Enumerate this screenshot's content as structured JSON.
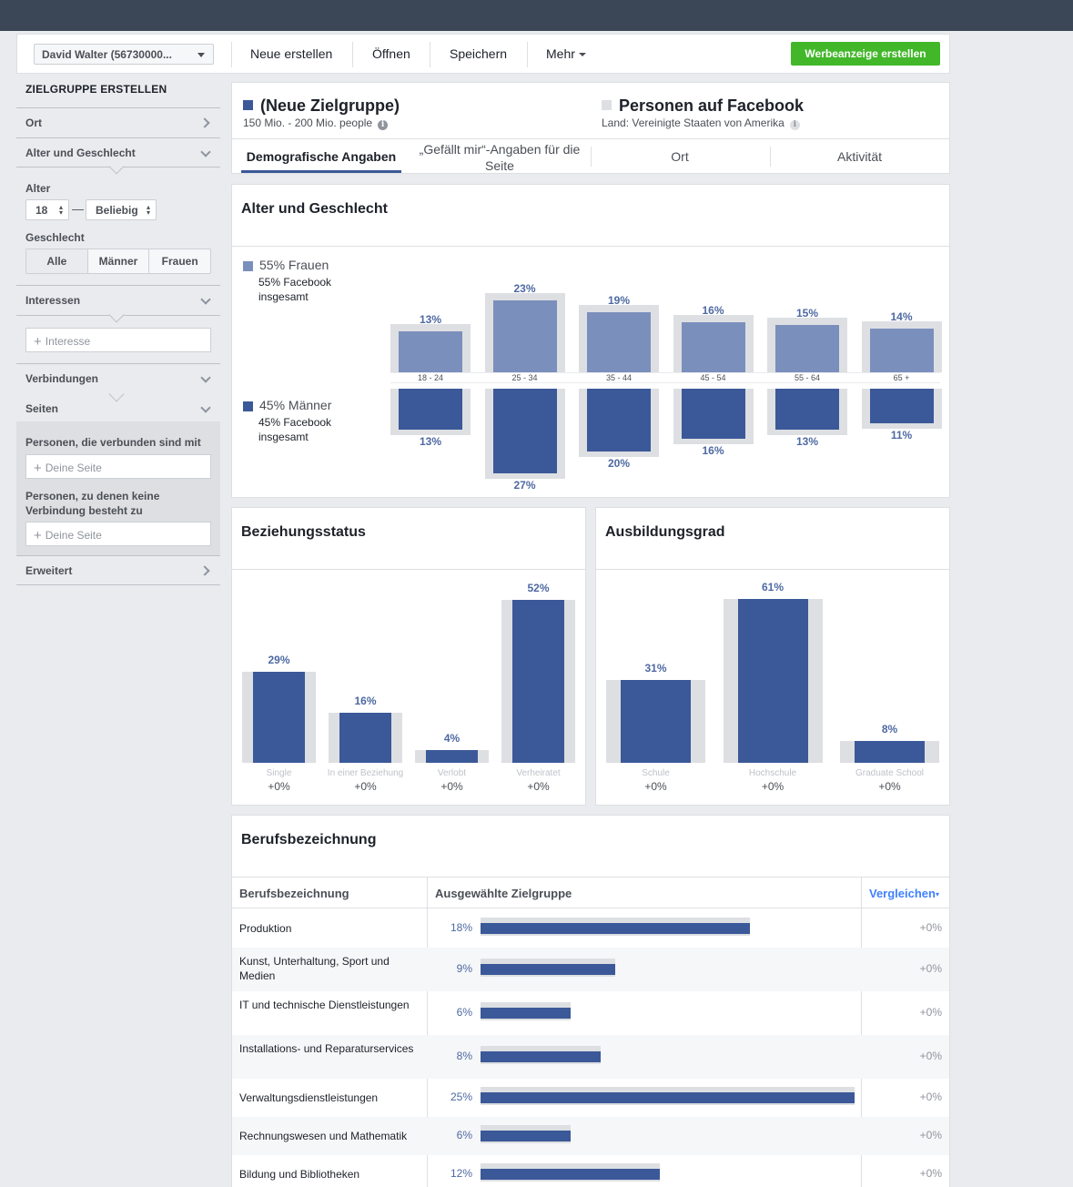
{
  "toolbar": {
    "account": "David Walter (56730000...",
    "new": "Neue erstellen",
    "open": "Öffnen",
    "save": "Speichern",
    "more": "Mehr",
    "create_ad": "Werbeanzeige erstellen"
  },
  "sidebar": {
    "title": "ZIELGRUPPE ERSTELLEN",
    "location": "Ort",
    "age_gender": "Alter und Geschlecht",
    "age_label": "Alter",
    "age_min": "18",
    "age_dash": "—",
    "age_max": "Beliebig",
    "gender_label": "Geschlecht",
    "gender_all": "Alle",
    "gender_men": "Männer",
    "gender_women": "Frauen",
    "interests": "Interessen",
    "interest_placeholder": "Interesse",
    "connections": "Verbindungen",
    "pages": "Seiten",
    "connected_label": "Personen, die verbunden sind mit",
    "not_connected_label": "Personen, zu denen keine Verbindung besteht zu",
    "page_placeholder": "Deine Seite",
    "advanced": "Erweitert",
    "plus_symbol": "+"
  },
  "audience": {
    "title": "(Neue Zielgruppe)",
    "size": "150 Mio. - 200 Mio. people",
    "compare_title": "Personen auf Facebook",
    "country": "Land: Vereinigte Staaten von Amerika",
    "accent": "#3b5998"
  },
  "tabs": [
    {
      "label": "Demografische Angaben"
    },
    {
      "label": "„Gefällt mir“-Angaben für die Seite"
    },
    {
      "label": "Ort"
    },
    {
      "label": "Aktivität"
    }
  ],
  "age_gender": {
    "title": "Alter und Geschlecht",
    "women_legend": "55% Frauen",
    "women_sub": "55% Facebook insgesamt",
    "men_legend": "45% Männer",
    "men_sub": "45% Facebook insgesamt"
  },
  "relationship": {
    "title": "Beziehungsstatus"
  },
  "education": {
    "title": "Ausbildungsgrad"
  },
  "jobs": {
    "title": "Berufsbezeichnung",
    "col1": "Berufsbezeichnung",
    "col2": "Ausgewählte Zielgruppe",
    "col3": "Vergleichen",
    "rows": [
      {
        "label": "Produktion",
        "pct": "18%",
        "delta": "+0%",
        "value": 18
      },
      {
        "label": "Kunst, Unterhaltung, Sport und Medien",
        "pct": "9%",
        "delta": "+0%",
        "value": 9
      },
      {
        "label": "IT und technische Dienstleistungen",
        "pct": "6%",
        "delta": "+0%",
        "value": 6
      },
      {
        "label": "Installations- und Reparaturservices",
        "pct": "8%",
        "delta": "+0%",
        "value": 8
      },
      {
        "label": "Verwaltungsdienstleistungen",
        "pct": "25%",
        "delta": "+0%",
        "value": 25
      },
      {
        "label": "Rechnungswesen und Mathematik",
        "pct": "6%",
        "delta": "+0%",
        "value": 6
      },
      {
        "label": "Bildung und Bibliotheken",
        "pct": "12%",
        "delta": "+0%",
        "value": 12
      }
    ]
  },
  "chart_data": [
    {
      "type": "bar",
      "title": "Alter und Geschlecht",
      "categories": [
        "18 - 24",
        "25 - 34",
        "35 - 44",
        "45 - 54",
        "55 - 64",
        "65 +"
      ],
      "series": [
        {
          "name": "55% Frauen",
          "values": [
            13,
            23,
            19,
            16,
            15,
            14
          ],
          "labels": [
            "13%",
            "23%",
            "19%",
            "16%",
            "15%",
            "14%"
          ]
        },
        {
          "name": "45% Männer",
          "values": [
            13,
            27,
            20,
            16,
            13,
            11
          ],
          "labels": [
            "13%",
            "27%",
            "20%",
            "16%",
            "13%",
            "11%"
          ]
        }
      ]
    },
    {
      "type": "bar",
      "title": "Beziehungsstatus",
      "categories": [
        "Single",
        "In einer Beziehung",
        "Verlobt",
        "Verheiratet"
      ],
      "values": [
        29,
        16,
        4,
        52
      ],
      "labels": [
        "29%",
        "16%",
        "4%",
        "52%"
      ],
      "deltas": [
        "+0%",
        "+0%",
        "+0%",
        "+0%"
      ]
    },
    {
      "type": "bar",
      "title": "Ausbildungsgrad",
      "categories": [
        "Schule",
        "Hochschule",
        "Graduate School"
      ],
      "values": [
        31,
        61,
        8
      ],
      "labels": [
        "31%",
        "61%",
        "8%"
      ],
      "deltas": [
        "+0%",
        "+0%",
        "+0%"
      ]
    }
  ]
}
